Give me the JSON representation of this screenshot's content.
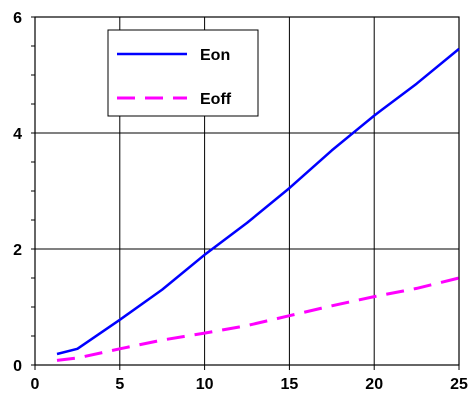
{
  "chart_data": {
    "type": "line",
    "title": "",
    "xlabel": "",
    "ylabel": "",
    "xlim": [
      0,
      25
    ],
    "ylim": [
      0,
      6
    ],
    "x_ticks": [
      "0",
      "5",
      "10",
      "15",
      "20",
      "25"
    ],
    "y_ticks": [
      "0",
      "2",
      "4",
      "6"
    ],
    "grid": true,
    "legend_position": "top-left",
    "series": [
      {
        "name": "Eon",
        "color": "#0000ff",
        "style": "solid",
        "x": [
          1.3,
          2.5,
          3.5,
          5,
          7.5,
          10,
          12.5,
          15,
          17.5,
          20,
          22.5,
          25
        ],
        "y": [
          0.19,
          0.28,
          0.48,
          0.78,
          1.3,
          1.9,
          2.45,
          3.05,
          3.7,
          4.3,
          4.85,
          5.45
        ]
      },
      {
        "name": "Eoff",
        "color": "#ff00ff",
        "style": "dashed",
        "x": [
          1.3,
          2.5,
          5,
          7.5,
          10,
          12.5,
          15,
          17.5,
          20,
          22.5,
          25
        ],
        "y": [
          0.08,
          0.12,
          0.28,
          0.43,
          0.55,
          0.68,
          0.85,
          1.02,
          1.18,
          1.32,
          1.5
        ]
      }
    ]
  }
}
